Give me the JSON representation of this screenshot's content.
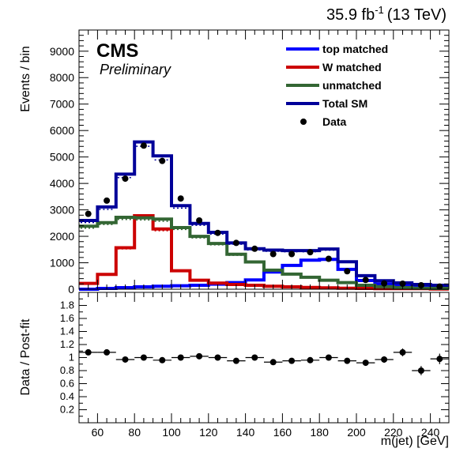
{
  "header": {
    "lumi": "35.9 fb",
    "lumi_exp": "-1",
    "energy": "(13 TeV)",
    "experiment": "CMS",
    "status": "Preliminary"
  },
  "colors": {
    "top_matched": "#0000ff",
    "w_matched": "#cc0000",
    "unmatched": "#336633",
    "total_sm": "#000099",
    "data": "#000000"
  },
  "chart_data": [
    {
      "type": "line",
      "panel": "main",
      "ylabel": "Events / bin",
      "xlim": [
        50,
        250
      ],
      "ylim": [
        0,
        9800
      ],
      "yticks": [
        0,
        1000,
        2000,
        3000,
        4000,
        5000,
        6000,
        7000,
        8000,
        9000
      ],
      "bin_edges": [
        50,
        60,
        70,
        80,
        90,
        100,
        110,
        120,
        130,
        140,
        150,
        160,
        170,
        180,
        190,
        200,
        210,
        220,
        230,
        240,
        250
      ],
      "series": [
        {
          "name": "top matched",
          "values": [
            0,
            30,
            60,
            90,
            110,
            130,
            150,
            190,
            250,
            350,
            650,
            900,
            1100,
            1130,
            750,
            330,
            200,
            160,
            120,
            110
          ]
        },
        {
          "name": "W matched",
          "values": [
            220,
            560,
            1570,
            2780,
            2280,
            700,
            340,
            230,
            180,
            150,
            110,
            90,
            70,
            50,
            40,
            30,
            20,
            20,
            20,
            10
          ]
        },
        {
          "name": "unmatched",
          "values": [
            2380,
            2520,
            2720,
            2700,
            2650,
            2330,
            2000,
            1730,
            1320,
            1030,
            720,
            570,
            450,
            340,
            250,
            150,
            100,
            60,
            40,
            30
          ]
        },
        {
          "name": "Total SM",
          "values": [
            2600,
            3110,
            4350,
            5570,
            5040,
            3160,
            2490,
            2150,
            1750,
            1530,
            1480,
            1460,
            1460,
            1520,
            1040,
            510,
            320,
            240,
            180,
            150
          ]
        }
      ],
      "data_points": {
        "name": "Data",
        "x": [
          55,
          65,
          75,
          85,
          95,
          105,
          115,
          125,
          135,
          145,
          155,
          165,
          175,
          185,
          195,
          205,
          215,
          225,
          235,
          245
        ],
        "y": [
          2850,
          3350,
          4180,
          5430,
          4850,
          3430,
          2600,
          2130,
          1750,
          1530,
          1330,
          1330,
          1400,
          1150,
          680,
          350,
          220,
          210,
          150,
          100
        ]
      },
      "legend": [
        "top matched",
        "W matched",
        "unmatched",
        "Total SM",
        "Data"
      ],
      "legend_position": "top-right"
    },
    {
      "type": "scatter",
      "panel": "ratio",
      "xlabel": "m(jet) [GeV]",
      "ylabel": "Data / Post-fit",
      "xlim": [
        50,
        250
      ],
      "ylim": [
        0,
        2
      ],
      "yticks": [
        0.2,
        0.4,
        0.6,
        0.8,
        1,
        1.2,
        1.4,
        1.6,
        1.8
      ],
      "xticks": [
        60,
        80,
        100,
        120,
        140,
        160,
        180,
        200,
        220,
        240
      ],
      "x": [
        55,
        65,
        75,
        85,
        95,
        105,
        115,
        125,
        135,
        145,
        155,
        165,
        175,
        185,
        195,
        205,
        215,
        225,
        235,
        245
      ],
      "y": [
        1.08,
        1.08,
        0.97,
        1.0,
        0.96,
        1.0,
        1.02,
        1.0,
        0.95,
        1.0,
        0.93,
        0.95,
        0.96,
        1.0,
        0.95,
        0.92,
        0.97,
        1.08,
        0.8,
        0.98
      ],
      "yerr": [
        0.02,
        0.02,
        0.02,
        0.02,
        0.02,
        0.02,
        0.02,
        0.02,
        0.02,
        0.02,
        0.02,
        0.02,
        0.02,
        0.02,
        0.03,
        0.04,
        0.05,
        0.06,
        0.07,
        0.08
      ]
    }
  ]
}
